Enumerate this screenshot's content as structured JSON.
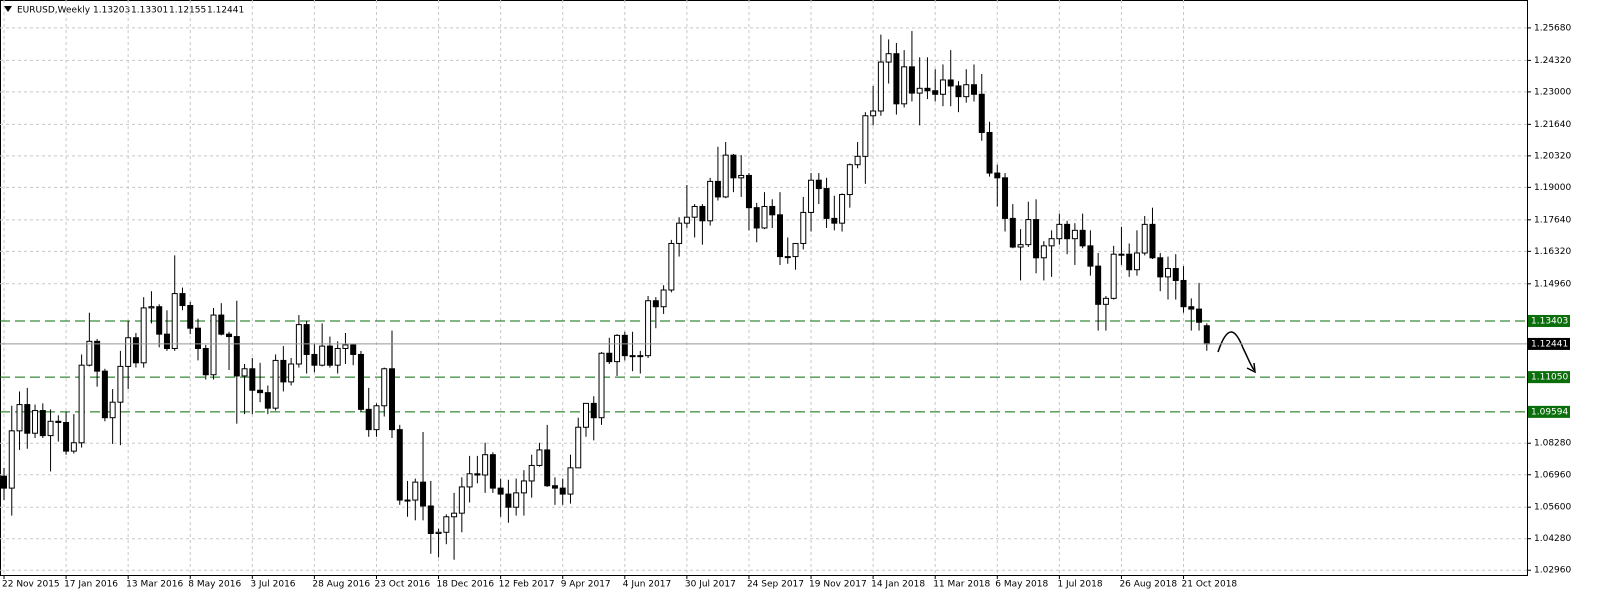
{
  "chart_data": {
    "type": "candlestick",
    "title": "EURUSD,Weekly",
    "categories": [
      "22 Nov 2015",
      null,
      null,
      null,
      null,
      null,
      null,
      null,
      "17 Jan 2016",
      null,
      null,
      null,
      null,
      null,
      null,
      null,
      "13 Mar 2016",
      null,
      null,
      null,
      null,
      null,
      null,
      null,
      "8 May 2016",
      null,
      null,
      null,
      null,
      null,
      null,
      null,
      "3 Jul 2016",
      null,
      null,
      null,
      null,
      null,
      null,
      null,
      "28 Aug 2016",
      null,
      null,
      null,
      null,
      null,
      null,
      null,
      "23 Oct 2016",
      null,
      null,
      null,
      null,
      null,
      null,
      null,
      "18 Dec 2016",
      null,
      null,
      null,
      null,
      null,
      null,
      null,
      "12 Feb 2017",
      null,
      null,
      null,
      null,
      null,
      null,
      null,
      "9 Apr 2017",
      null,
      null,
      null,
      null,
      null,
      null,
      null,
      "4 Jun 2017",
      null,
      null,
      null,
      null,
      null,
      null,
      null,
      "30 Jul 2017",
      null,
      null,
      null,
      null,
      null,
      null,
      null,
      "24 Sep 2017",
      null,
      null,
      null,
      null,
      null,
      null,
      null,
      "19 Nov 2017",
      null,
      null,
      null,
      null,
      null,
      null,
      null,
      "14 Jan 2018",
      null,
      null,
      null,
      null,
      null,
      null,
      null,
      "11 Mar 2018",
      null,
      null,
      null,
      null,
      null,
      null,
      null,
      "6 May 2018",
      null,
      null,
      null,
      null,
      null,
      null,
      null,
      "1 Jul 2018",
      null,
      null,
      null,
      null,
      null,
      null,
      null,
      "26 Aug 2018",
      null,
      null,
      null,
      null,
      null,
      null,
      null,
      "21 Oct 2018",
      null,
      null,
      null
    ],
    "ohlc": [
      [
        1.069,
        1.0725,
        1.059,
        1.064
      ],
      [
        1.064,
        1.0985,
        1.0525,
        1.088
      ],
      [
        1.088,
        1.1045,
        1.08,
        1.099
      ],
      [
        1.099,
        1.106,
        1.0805,
        1.087
      ],
      [
        1.087,
        1.099,
        1.085,
        1.0965
      ],
      [
        1.0965,
        1.0995,
        1.085,
        1.086
      ],
      [
        1.086,
        1.097,
        1.071,
        1.092
      ],
      [
        1.092,
        1.0945,
        1.0835,
        1.0915
      ],
      [
        1.0915,
        1.096,
        1.078,
        1.0795
      ],
      [
        1.0795,
        1.095,
        1.0785,
        1.083
      ],
      [
        1.083,
        1.12,
        1.081,
        1.1155
      ],
      [
        1.1155,
        1.1375,
        1.115,
        1.1255
      ],
      [
        1.1255,
        1.1265,
        1.1065,
        1.113
      ],
      [
        1.113,
        1.114,
        1.092,
        1.0935
      ],
      [
        1.0935,
        1.1055,
        1.0825,
        1.1
      ],
      [
        1.1,
        1.1215,
        1.082,
        1.115
      ],
      [
        1.115,
        1.134,
        1.1055,
        1.127
      ],
      [
        1.127,
        1.129,
        1.1145,
        1.1165
      ],
      [
        1.1165,
        1.144,
        1.1145,
        1.1395
      ],
      [
        1.1395,
        1.1465,
        1.133,
        1.14
      ],
      [
        1.14,
        1.141,
        1.123,
        1.1285
      ],
      [
        1.1285,
        1.1385,
        1.1215,
        1.1225
      ],
      [
        1.1225,
        1.1615,
        1.1215,
        1.1455
      ],
      [
        1.1455,
        1.148,
        1.1385,
        1.1405
      ],
      [
        1.1405,
        1.142,
        1.1285,
        1.131
      ],
      [
        1.131,
        1.135,
        1.1175,
        1.1225
      ],
      [
        1.1225,
        1.124,
        1.1095,
        1.1115
      ],
      [
        1.1115,
        1.1395,
        1.1095,
        1.1365
      ],
      [
        1.1365,
        1.1415,
        1.128,
        1.1285
      ],
      [
        1.1285,
        1.1295,
        1.1135,
        1.1275
      ],
      [
        1.1275,
        1.1425,
        1.091,
        1.111
      ],
      [
        1.111,
        1.116,
        1.095,
        1.114
      ],
      [
        1.114,
        1.1185,
        1.095,
        1.105
      ],
      [
        1.105,
        1.1165,
        1.1,
        1.104
      ],
      [
        1.104,
        1.107,
        1.095,
        1.0975
      ],
      [
        1.0975,
        1.12,
        1.0965,
        1.1175
      ],
      [
        1.1175,
        1.1235,
        1.1045,
        1.1085
      ],
      [
        1.1085,
        1.1185,
        1.107,
        1.116
      ],
      [
        1.116,
        1.1365,
        1.1145,
        1.1325
      ],
      [
        1.1325,
        1.134,
        1.112,
        1.12
      ],
      [
        1.12,
        1.1245,
        1.1125,
        1.1155
      ],
      [
        1.1155,
        1.133,
        1.115,
        1.1235
      ],
      [
        1.1235,
        1.1275,
        1.1145,
        1.1155
      ],
      [
        1.1155,
        1.1255,
        1.112,
        1.1225
      ],
      [
        1.1225,
        1.129,
        1.116,
        1.124
      ],
      [
        1.124,
        1.1245,
        1.1155,
        1.12
      ],
      [
        1.12,
        1.1215,
        1.096,
        1.097
      ],
      [
        1.097,
        1.106,
        1.0855,
        1.0885
      ],
      [
        1.0885,
        1.0995,
        1.0855,
        1.0985
      ],
      [
        1.0985,
        1.1145,
        1.094,
        1.114
      ],
      [
        1.114,
        1.13,
        1.085,
        1.0885
      ],
      [
        1.0885,
        1.0905,
        1.057,
        1.059
      ],
      [
        1.059,
        1.067,
        1.052,
        1.059
      ],
      [
        1.059,
        1.068,
        1.0505,
        1.0665
      ],
      [
        1.0665,
        1.0875,
        1.0505,
        1.0565
      ],
      [
        1.0565,
        1.067,
        1.0365,
        1.045
      ],
      [
        1.045,
        1.047,
        1.035,
        1.0455
      ],
      [
        1.0455,
        1.053,
        1.0405,
        1.052
      ],
      [
        1.052,
        1.062,
        1.034,
        1.0535
      ],
      [
        1.0535,
        1.0685,
        1.0455,
        1.0645
      ],
      [
        1.0645,
        1.0775,
        1.058,
        1.07
      ],
      [
        1.07,
        1.0775,
        1.066,
        1.0695
      ],
      [
        1.0695,
        1.083,
        1.062,
        1.078
      ],
      [
        1.078,
        1.079,
        1.062,
        1.064
      ],
      [
        1.064,
        1.068,
        1.052,
        1.0615
      ],
      [
        1.0615,
        1.0675,
        1.0495,
        1.056
      ],
      [
        1.056,
        1.068,
        1.0525,
        1.062
      ],
      [
        1.062,
        1.0715,
        1.0525,
        1.067
      ],
      [
        1.067,
        1.078,
        1.06,
        1.0735
      ],
      [
        1.0735,
        1.083,
        1.073,
        1.08
      ],
      [
        1.08,
        1.0905,
        1.0645,
        1.065
      ],
      [
        1.065,
        1.0685,
        1.057,
        1.064
      ],
      [
        1.064,
        1.068,
        1.057,
        1.0615
      ],
      [
        1.0615,
        1.078,
        1.0575,
        1.0725
      ],
      [
        1.0725,
        1.0935,
        1.0725,
        1.0895
      ],
      [
        1.0895,
        1.0995,
        1.0855,
        1.0995
      ],
      [
        1.0995,
        1.1025,
        1.084,
        1.0935
      ],
      [
        1.0935,
        1.121,
        1.0905,
        1.1205
      ],
      [
        1.1205,
        1.127,
        1.116,
        1.117
      ],
      [
        1.117,
        1.1285,
        1.111,
        1.128
      ],
      [
        1.128,
        1.1295,
        1.1175,
        1.1195
      ],
      [
        1.1195,
        1.1295,
        1.113,
        1.1195
      ],
      [
        1.1195,
        1.1215,
        1.112,
        1.1195
      ],
      [
        1.1195,
        1.1445,
        1.1185,
        1.1425
      ],
      [
        1.1425,
        1.144,
        1.131,
        1.14
      ],
      [
        1.14,
        1.149,
        1.137,
        1.147
      ],
      [
        1.147,
        1.168,
        1.146,
        1.1665
      ],
      [
        1.1665,
        1.1775,
        1.161,
        1.175
      ],
      [
        1.175,
        1.191,
        1.173,
        1.1775
      ],
      [
        1.1775,
        1.183,
        1.169,
        1.182
      ],
      [
        1.182,
        1.183,
        1.166,
        1.176
      ],
      [
        1.176,
        1.194,
        1.174,
        1.1925
      ],
      [
        1.1925,
        1.207,
        1.1845,
        1.186
      ],
      [
        1.186,
        1.209,
        1.1855,
        1.2035
      ],
      [
        1.2035,
        1.204,
        1.188,
        1.194
      ],
      [
        1.194,
        1.2035,
        1.186,
        1.195
      ],
      [
        1.195,
        1.196,
        1.172,
        1.1815
      ],
      [
        1.1815,
        1.1835,
        1.167,
        1.173
      ],
      [
        1.173,
        1.188,
        1.1725,
        1.182
      ],
      [
        1.182,
        1.185,
        1.173,
        1.1785
      ],
      [
        1.1785,
        1.188,
        1.1575,
        1.161
      ],
      [
        1.161,
        1.169,
        1.158,
        1.161
      ],
      [
        1.161,
        1.1665,
        1.1555,
        1.1665
      ],
      [
        1.1665,
        1.186,
        1.164,
        1.1795
      ],
      [
        1.1795,
        1.196,
        1.1715,
        1.193
      ],
      [
        1.193,
        1.196,
        1.183,
        1.1895
      ],
      [
        1.1895,
        1.194,
        1.173,
        1.177
      ],
      [
        1.177,
        1.1865,
        1.172,
        1.175
      ],
      [
        1.175,
        1.1875,
        1.1715,
        1.187
      ],
      [
        1.187,
        1.2,
        1.1815,
        1.1995
      ],
      [
        1.1995,
        1.209,
        1.198,
        1.203
      ],
      [
        1.203,
        1.2215,
        1.1915,
        1.22
      ],
      [
        1.22,
        1.2325,
        1.216,
        1.222
      ],
      [
        1.222,
        1.254,
        1.22,
        1.2425
      ],
      [
        1.2425,
        1.252,
        1.2335,
        1.246
      ],
      [
        1.246,
        1.2505,
        1.2205,
        1.225
      ],
      [
        1.225,
        1.2475,
        1.2235,
        1.2405
      ],
      [
        1.2405,
        1.2555,
        1.226,
        1.2295
      ],
      [
        1.2295,
        1.2445,
        1.216,
        1.2315
      ],
      [
        1.2315,
        1.2445,
        1.227,
        1.2305
      ],
      [
        1.2305,
        1.2395,
        1.226,
        1.229
      ],
      [
        1.229,
        1.2415,
        1.224,
        1.235
      ],
      [
        1.235,
        1.2475,
        1.224,
        1.2325
      ],
      [
        1.2325,
        1.2345,
        1.2215,
        1.228
      ],
      [
        1.228,
        1.2395,
        1.2255,
        1.233
      ],
      [
        1.233,
        1.2415,
        1.226,
        1.229
      ],
      [
        1.229,
        1.2375,
        1.2095,
        1.213
      ],
      [
        1.213,
        1.2175,
        1.1945,
        1.196
      ],
      [
        1.196,
        1.1995,
        1.182,
        1.194
      ],
      [
        1.194,
        1.196,
        1.1715,
        1.177
      ],
      [
        1.177,
        1.183,
        1.1645,
        1.165
      ],
      [
        1.165,
        1.1725,
        1.151,
        1.166
      ],
      [
        1.166,
        1.184,
        1.165,
        1.1765
      ],
      [
        1.1765,
        1.185,
        1.154,
        1.1605
      ],
      [
        1.1605,
        1.1675,
        1.151,
        1.1655
      ],
      [
        1.1655,
        1.172,
        1.1525,
        1.1685
      ],
      [
        1.1685,
        1.179,
        1.166,
        1.1745
      ],
      [
        1.1745,
        1.176,
        1.162,
        1.1685
      ],
      [
        1.1685,
        1.175,
        1.1575,
        1.172
      ],
      [
        1.172,
        1.179,
        1.1645,
        1.1655
      ],
      [
        1.1655,
        1.172,
        1.153,
        1.157
      ],
      [
        1.157,
        1.1625,
        1.13,
        1.141
      ],
      [
        1.141,
        1.1445,
        1.13,
        1.1435
      ],
      [
        1.1435,
        1.1655,
        1.143,
        1.162
      ],
      [
        1.162,
        1.1735,
        1.1575,
        1.162
      ],
      [
        1.162,
        1.1665,
        1.1525,
        1.1555
      ],
      [
        1.1555,
        1.172,
        1.153,
        1.1625
      ],
      [
        1.1625,
        1.178,
        1.1615,
        1.1745
      ],
      [
        1.1745,
        1.1815,
        1.16,
        1.1605
      ],
      [
        1.1605,
        1.1625,
        1.1465,
        1.1525
      ],
      [
        1.1525,
        1.161,
        1.143,
        1.156
      ],
      [
        1.156,
        1.162,
        1.143,
        1.151
      ],
      [
        1.151,
        1.157,
        1.1375,
        1.14
      ],
      [
        1.14,
        1.1435,
        1.13,
        1.139
      ],
      [
        1.139,
        1.15,
        1.13,
        1.1335
      ],
      [
        1.13203,
        1.13301,
        1.12155,
        1.12441
      ]
    ],
    "bull_color": "#ffffff",
    "bear_color": "#000000",
    "ylim": [
      1.0276,
      1.2685
    ],
    "yticks": [
      {
        "value": 1.2568,
        "label": "1.25680"
      },
      {
        "value": 1.2432,
        "label": "1.24320"
      },
      {
        "value": 1.23,
        "label": "1.23000"
      },
      {
        "value": 1.2164,
        "label": "1.21640"
      },
      {
        "value": 1.2032,
        "label": "1.20320"
      },
      {
        "value": 1.19,
        "label": "1.19000"
      },
      {
        "value": 1.1764,
        "label": "1.17640"
      },
      {
        "value": 1.1632,
        "label": "1.16320"
      },
      {
        "value": 1.1496,
        "label": "1.14960"
      },
      {
        "value": 1.0828,
        "label": "1.08280"
      },
      {
        "value": 1.0696,
        "label": "1.06960"
      },
      {
        "value": 1.056,
        "label": "1.05600"
      },
      {
        "value": 1.0428,
        "label": "1.04280"
      },
      {
        "value": 1.0296,
        "label": "1.02960"
      }
    ],
    "levels": [
      1.13403,
      {
        "value": 1.1105,
        "label": "1.11050"
      },
      1.09594
    ],
    "level_color": "#0a6e0a",
    "grid": true
  }
}
